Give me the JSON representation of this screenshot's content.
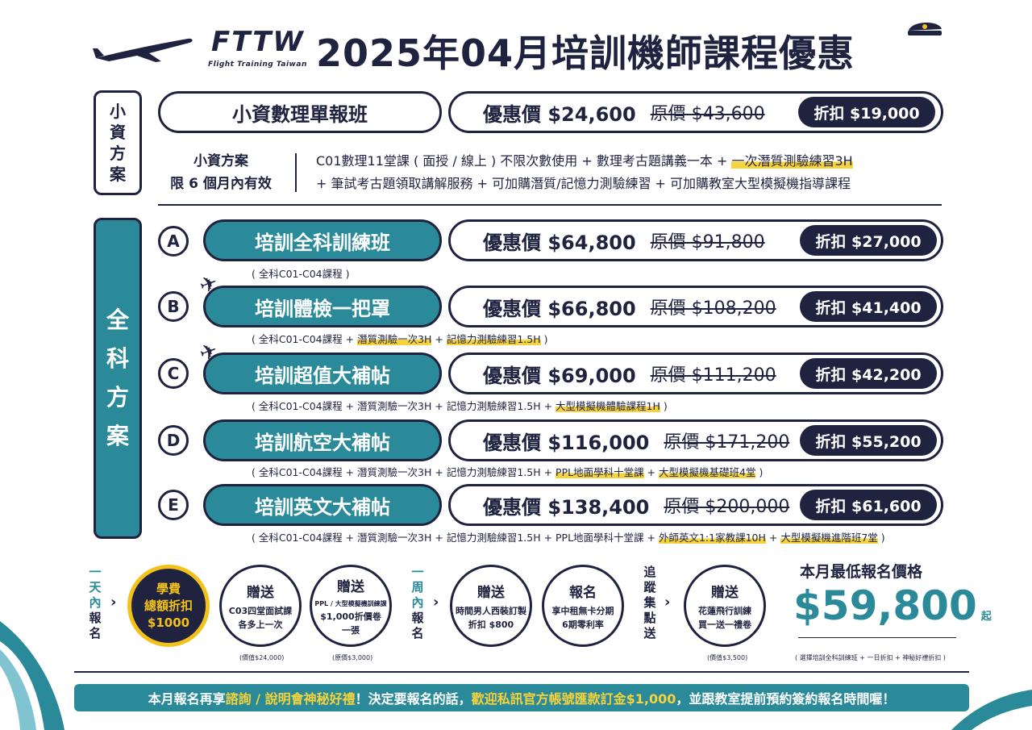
{
  "header": {
    "logo": "FTTW",
    "logo_sub": "Flight Training Taiwan",
    "title": "2025年04月培訓機師課程優惠"
  },
  "small_plan": {
    "side_label": [
      "小",
      "資",
      "方",
      "案"
    ],
    "name": "小資數理單報班",
    "price": "優惠價 $24,600",
    "original": "原價 $43,600",
    "discount": "折扣 $19,000",
    "info_title": "小資方案",
    "info_valid": "限 6 個月內有效",
    "desc_line1_a": "C01數理11堂課 ( 面授 / 線上 ) 不限次數使用 + 數理考古題講義一本 + ",
    "desc_line1_hl": "一次潛質測驗練習3H",
    "desc_line2": "+ 筆試考古題領取講解服務 + 可加購潛質/記憶力測驗練習 + 可加購教室大型模擬機指導課程"
  },
  "full_plan": {
    "side_label": [
      "全",
      "科",
      "方",
      "案"
    ],
    "courses": [
      {
        "letter": "A",
        "name": "培訓全科訓練班",
        "price": "優惠價 $64,800",
        "original": "原價 $91,800",
        "discount": "折扣 $27,000",
        "sub": [
          {
            "t": "( 全科C01-C04課程 )",
            "hl": false
          }
        ]
      },
      {
        "letter": "B",
        "name": "培訓體檢一把罩",
        "price": "優惠價 $66,800",
        "original": "原價 $108,200",
        "discount": "折扣 $41,400",
        "sub": [
          {
            "t": "( 全科C01-C04課程 + ",
            "hl": false
          },
          {
            "t": "潛質測驗一次3H",
            "hl": true
          },
          {
            "t": " + ",
            "hl": false
          },
          {
            "t": "記憶力測驗練習1.5H",
            "hl": true
          },
          {
            "t": " )",
            "hl": false
          }
        ]
      },
      {
        "letter": "C",
        "name": "培訓超值大補帖",
        "price": "優惠價 $69,000",
        "original": "原價 $111,200",
        "discount": "折扣 $42,200",
        "sub": [
          {
            "t": "( 全科C01-C04課程  + 潛質測驗一次3H + 記憶力測驗練習1.5H + ",
            "hl": false
          },
          {
            "t": "大型模擬機體驗課程1H",
            "hl": true
          },
          {
            "t": " )",
            "hl": false
          }
        ]
      },
      {
        "letter": "D",
        "name": "培訓航空大補帖",
        "price": "優惠價 $116,000",
        "original": "原價 $171,200",
        "discount": "折扣 $55,200",
        "sub": [
          {
            "t": "( 全科C01-C04課程  + 潛質測驗一次3H + 記憶力測驗練習1.5H + ",
            "hl": false
          },
          {
            "t": "PPL地面學科十堂課",
            "hl": true
          },
          {
            "t": " + ",
            "hl": false
          },
          {
            "t": "大型模擬機基礎班4堂",
            "hl": true
          },
          {
            "t": " )",
            "hl": false
          }
        ]
      },
      {
        "letter": "E",
        "name": "培訓英文大補帖",
        "price": "優惠價 $138,400",
        "original": "原價 $200,000",
        "discount": "折扣 $61,600",
        "sub": [
          {
            "t": "( 全科C01-C04課程  + 潛質測驗一次3H + 記憶力測驗練習1.5H + PPL地面學科十堂課 + ",
            "hl": false
          },
          {
            "t": "外師英文1:1家教課10H",
            "hl": true
          },
          {
            "t": " + ",
            "hl": false
          },
          {
            "t": "大型模擬機進階班7堂",
            "hl": true
          },
          {
            "t": " )",
            "hl": false
          }
        ]
      }
    ]
  },
  "promos": {
    "group1_label": [
      "一",
      "天",
      "內",
      "報",
      "名"
    ],
    "group2_label": [
      "一",
      "周",
      "內",
      "報",
      "名"
    ],
    "group3_label": [
      "追",
      "蹤",
      "集",
      "點",
      "送"
    ],
    "gold": {
      "lines": [
        "學費",
        "總額折扣",
        "$1000"
      ]
    },
    "c1": {
      "title": "贈送",
      "lines": [
        "C03四堂面試課",
        "各多上一次"
      ],
      "note": "(價值$24,000)"
    },
    "c2": {
      "title": "贈送",
      "small": "PPL / 大型模擬機訓練課",
      "lines": [
        "$1,000折價卷",
        "一張"
      ],
      "note": "(原價$3,000)"
    },
    "c3": {
      "title": "贈送",
      "lines": [
        "時間男人西裝訂製",
        "折扣 $800"
      ]
    },
    "c4": {
      "title": "報名",
      "lines": [
        "享中租無卡分期",
        "6期零利率"
      ]
    },
    "c5": {
      "title": "贈送",
      "lines": [
        "花蓮飛行訓練",
        "買一送一禮卷"
      ],
      "note": "(價值$3,500)"
    },
    "lowest_title": "本月最低報名價格",
    "lowest_price": "$59,800",
    "lowest_suffix": "起",
    "lowest_note": "( 選擇培訓全科訓練班 + 一日折扣 + 神秘好禮折扣 )"
  },
  "banner": {
    "a": "本月報名再享 ",
    "b": "諮詢 / 說明會神秘好禮",
    "c": "！決定要報名的話，",
    "d": "歡迎私訊官方帳號匯款訂金$1,000",
    "e": "，並跟教室提前預約簽約報名時間喔！"
  },
  "colors": {
    "navy": "#1f2340",
    "teal": "#2a8a99",
    "gold": "#f2c21b",
    "highlight": "#f7d33b"
  }
}
